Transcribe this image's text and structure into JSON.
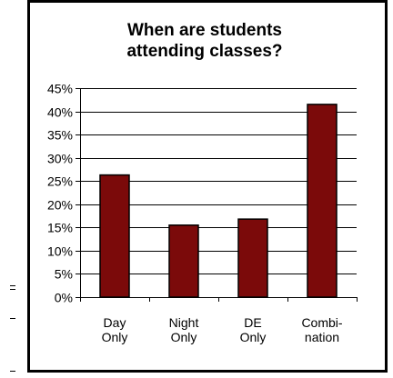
{
  "chart_data": {
    "type": "bar",
    "title_lines": [
      "When are students",
      "attending classes?"
    ],
    "categories": [
      [
        "Day",
        "Only"
      ],
      [
        "Night",
        "Only"
      ],
      [
        "DE",
        "Only"
      ],
      [
        "Combi-",
        "nation"
      ]
    ],
    "values": [
      26.3,
      15.5,
      16.8,
      41.5
    ],
    "y_ticks": [
      "0%",
      "5%",
      "10%",
      "15%",
      "20%",
      "25%",
      "30%",
      "35%",
      "40%",
      "45%"
    ],
    "ylim": [
      0,
      45
    ],
    "grid": true,
    "legend": "none",
    "colors": {
      "bar_fill": "#7b0a0a",
      "bar_stroke": "#000000",
      "grid": "#000000",
      "axis": "#000000"
    }
  }
}
